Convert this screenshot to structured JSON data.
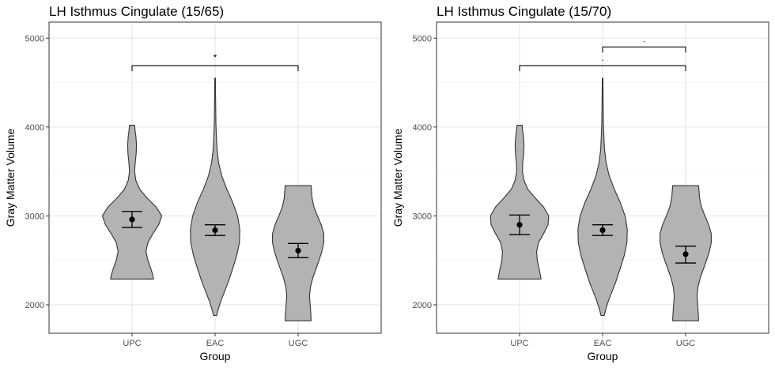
{
  "chart_data": [
    {
      "type": "violin",
      "title": "LH Isthmus Cingulate (15/65)",
      "xlabel": "Group",
      "ylabel": "Gray Matter Volume",
      "categories": [
        "UPC",
        "EAC",
        "UGC"
      ],
      "ylim": [
        1680,
        5180
      ],
      "yticks": [
        2000,
        3000,
        4000,
        5000
      ],
      "ytick_labels": [
        "2000",
        "3000",
        "4000",
        "5000"
      ],
      "grid": true,
      "fill_color": "#b3b3b3",
      "groups": [
        {
          "name": "UPC",
          "min": 2290,
          "max": 4020,
          "mean": 2960,
          "ci_low": 2870,
          "ci_high": 3050,
          "density": [
            [
              2290,
              0.68
            ],
            [
              2330,
              0.66
            ],
            [
              2400,
              0.6
            ],
            [
              2500,
              0.5
            ],
            [
              2600,
              0.44
            ],
            [
              2700,
              0.5
            ],
            [
              2800,
              0.66
            ],
            [
              2900,
              0.84
            ],
            [
              3000,
              0.94
            ],
            [
              3100,
              0.76
            ],
            [
              3200,
              0.48
            ],
            [
              3300,
              0.24
            ],
            [
              3400,
              0.12
            ],
            [
              3500,
              0.08
            ],
            [
              3600,
              0.1
            ],
            [
              3700,
              0.13
            ],
            [
              3800,
              0.14
            ],
            [
              3900,
              0.12
            ],
            [
              3950,
              0.1
            ],
            [
              4020,
              0.08
            ]
          ]
        },
        {
          "name": "EAC",
          "min": 1880,
          "max": 4550,
          "mean": 2840,
          "ci_low": 2780,
          "ci_high": 2900,
          "density": [
            [
              1880,
              0.05
            ],
            [
              1950,
              0.1
            ],
            [
              2050,
              0.19
            ],
            [
              2150,
              0.3
            ],
            [
              2250,
              0.41
            ],
            [
              2400,
              0.55
            ],
            [
              2550,
              0.68
            ],
            [
              2700,
              0.77
            ],
            [
              2850,
              0.78
            ],
            [
              3000,
              0.71
            ],
            [
              3150,
              0.56
            ],
            [
              3300,
              0.37
            ],
            [
              3450,
              0.21
            ],
            [
              3600,
              0.11
            ],
            [
              3750,
              0.06
            ],
            [
              3900,
              0.04
            ],
            [
              4050,
              0.025
            ],
            [
              4200,
              0.02
            ],
            [
              4350,
              0.015
            ],
            [
              4550,
              0.01
            ]
          ]
        },
        {
          "name": "UGC",
          "min": 1820,
          "max": 3340,
          "mean": 2610,
          "ci_low": 2530,
          "ci_high": 2690,
          "density": [
            [
              1820,
              0.41
            ],
            [
              1900,
              0.4
            ],
            [
              2000,
              0.38
            ],
            [
              2100,
              0.36
            ],
            [
              2200,
              0.39
            ],
            [
              2300,
              0.46
            ],
            [
              2400,
              0.56
            ],
            [
              2500,
              0.66
            ],
            [
              2600,
              0.75
            ],
            [
              2700,
              0.81
            ],
            [
              2800,
              0.81
            ],
            [
              2900,
              0.73
            ],
            [
              3000,
              0.61
            ],
            [
              3100,
              0.5
            ],
            [
              3200,
              0.44
            ],
            [
              3340,
              0.41
            ]
          ]
        }
      ],
      "comparisons": [
        {
          "from": "UPC",
          "to": "UGC",
          "y": 4690,
          "label": "*"
        }
      ]
    },
    {
      "type": "violin",
      "title": "LH Isthmus Cingulate (15/70)",
      "xlabel": "Group",
      "ylabel": "Gray Matter Volume",
      "categories": [
        "UPC",
        "EAC",
        "UGC"
      ],
      "ylim": [
        1680,
        5180
      ],
      "yticks": [
        2000,
        3000,
        4000,
        5000
      ],
      "ytick_labels": [
        "2000",
        "3000",
        "4000",
        "5000"
      ],
      "grid": true,
      "fill_color": "#b3b3b3",
      "groups": [
        {
          "name": "UPC",
          "min": 2290,
          "max": 4020,
          "mean": 2900,
          "ci_low": 2790,
          "ci_high": 3010,
          "density": [
            [
              2290,
              0.68
            ],
            [
              2330,
              0.66
            ],
            [
              2400,
              0.62
            ],
            [
              2500,
              0.56
            ],
            [
              2600,
              0.54
            ],
            [
              2700,
              0.6
            ],
            [
              2800,
              0.76
            ],
            [
              2900,
              0.9
            ],
            [
              3000,
              0.92
            ],
            [
              3100,
              0.76
            ],
            [
              3200,
              0.5
            ],
            [
              3300,
              0.26
            ],
            [
              3400,
              0.14
            ],
            [
              3500,
              0.09
            ],
            [
              3600,
              0.1
            ],
            [
              3700,
              0.13
            ],
            [
              3800,
              0.14
            ],
            [
              3900,
              0.12
            ],
            [
              3950,
              0.1
            ],
            [
              4020,
              0.08
            ]
          ]
        },
        {
          "name": "EAC",
          "min": 1880,
          "max": 4550,
          "mean": 2840,
          "ci_low": 2780,
          "ci_high": 2900,
          "density": [
            [
              1880,
              0.05
            ],
            [
              1950,
              0.1
            ],
            [
              2050,
              0.19
            ],
            [
              2150,
              0.3
            ],
            [
              2250,
              0.41
            ],
            [
              2400,
              0.55
            ],
            [
              2550,
              0.68
            ],
            [
              2700,
              0.77
            ],
            [
              2850,
              0.78
            ],
            [
              3000,
              0.71
            ],
            [
              3150,
              0.56
            ],
            [
              3300,
              0.37
            ],
            [
              3450,
              0.21
            ],
            [
              3600,
              0.11
            ],
            [
              3750,
              0.06
            ],
            [
              3900,
              0.04
            ],
            [
              4050,
              0.025
            ],
            [
              4200,
              0.02
            ],
            [
              4350,
              0.015
            ],
            [
              4550,
              0.01
            ]
          ]
        },
        {
          "name": "UGC",
          "min": 1820,
          "max": 3340,
          "mean": 2570,
          "ci_low": 2470,
          "ci_high": 2660,
          "density": [
            [
              1820,
              0.41
            ],
            [
              1900,
              0.4
            ],
            [
              2000,
              0.38
            ],
            [
              2100,
              0.36
            ],
            [
              2200,
              0.39
            ],
            [
              2300,
              0.46
            ],
            [
              2400,
              0.56
            ],
            [
              2500,
              0.66
            ],
            [
              2600,
              0.75
            ],
            [
              2700,
              0.81
            ],
            [
              2800,
              0.81
            ],
            [
              2900,
              0.73
            ],
            [
              3000,
              0.61
            ],
            [
              3100,
              0.5
            ],
            [
              3200,
              0.44
            ],
            [
              3340,
              0.41
            ]
          ]
        }
      ],
      "comparisons": [
        {
          "from": "UPC",
          "to": "UGC",
          "y": 4690,
          "label": "."
        },
        {
          "from": "EAC",
          "to": "UGC",
          "y": 4900,
          "label": "."
        }
      ]
    }
  ]
}
